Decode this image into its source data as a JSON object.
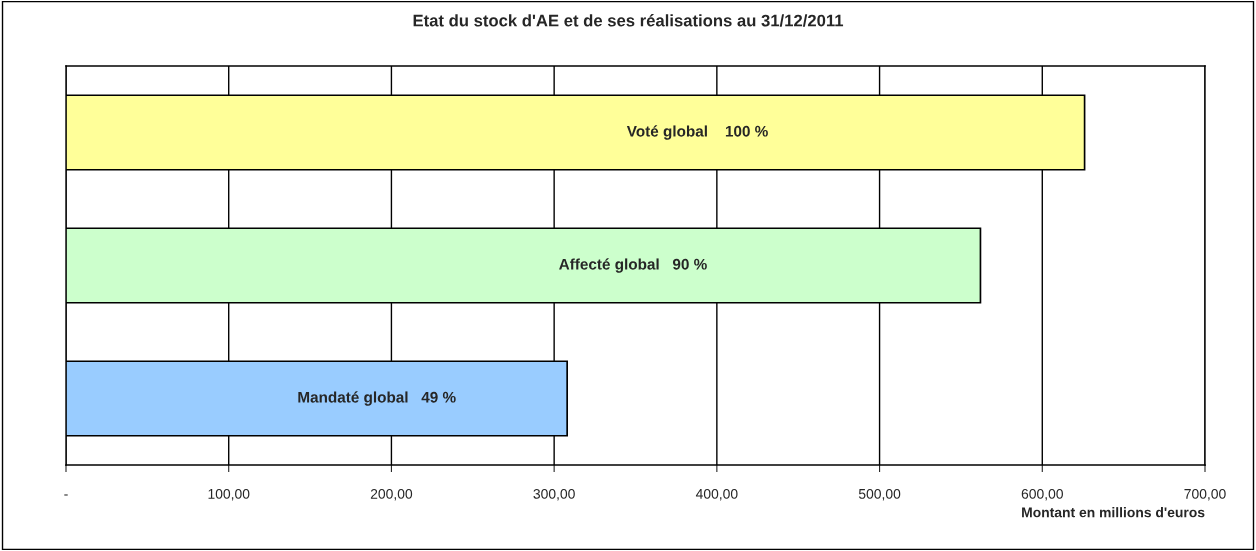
{
  "chart_data": {
    "type": "bar",
    "orientation": "horizontal",
    "title": "Etat du stock d'AE et de ses réalisations au 31/12/2011",
    "xlabel": "Montant en millions d'euros",
    "categories": [
      null,
      null,
      null
    ],
    "values": [
      626,
      562,
      308
    ],
    "colors": [
      "#ffff99",
      "#ccffcc",
      "#99ccff"
    ],
    "value_labels": [
      "Voté global    100 %",
      "Affecté global   90 %",
      "Mandaté global   49 %"
    ],
    "xlim": [
      0,
      700
    ],
    "xticks": [
      {
        "value": 0,
        "label": "-"
      },
      {
        "value": 100,
        "label": "100,00"
      },
      {
        "value": 200,
        "label": "200,00"
      },
      {
        "value": 300,
        "label": "300,00"
      },
      {
        "value": 400,
        "label": "400,00"
      },
      {
        "value": 500,
        "label": "500,00"
      },
      {
        "value": 600,
        "label": "600,00"
      },
      {
        "value": 700,
        "label": "700,00"
      }
    ],
    "grid": "x",
    "tick_labels": "x"
  }
}
